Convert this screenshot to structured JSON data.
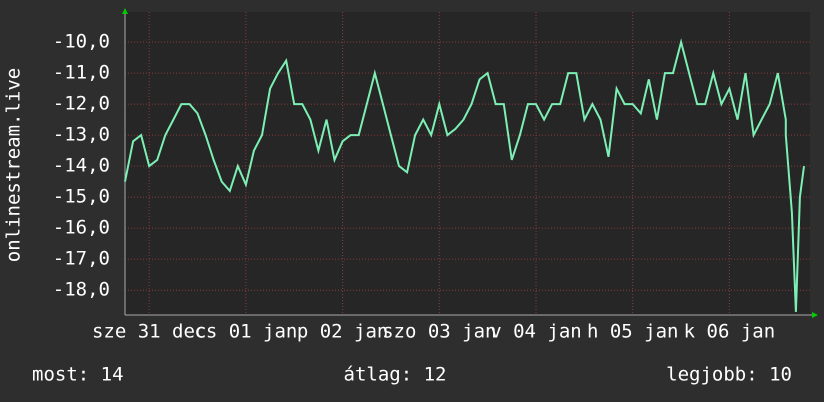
{
  "chart_data": {
    "type": "line",
    "y_label": "onlinestream.live",
    "x": [
      0,
      2,
      4,
      6,
      8,
      10,
      12,
      14,
      16,
      18,
      20,
      22,
      24,
      26,
      28,
      30,
      32,
      34,
      36,
      38,
      40,
      42,
      44,
      46,
      48,
      50,
      52,
      54,
      56,
      58,
      60,
      62,
      64,
      66,
      68,
      70,
      72,
      74,
      76,
      78,
      80,
      82,
      84,
      86,
      88,
      90,
      92,
      94,
      96,
      98,
      100,
      102,
      104,
      106,
      108,
      110,
      112,
      114,
      116,
      118,
      120,
      122,
      124,
      126,
      128,
      130,
      132,
      134,
      136,
      138,
      140,
      142,
      144,
      146,
      148,
      150,
      152,
      154,
      156,
      158,
      160,
      162,
      164,
      164,
      165.5,
      166.5,
      167.5,
      168.5
    ],
    "series": [
      {
        "name": "onlinestream.live",
        "color": "#7cf0b4",
        "values": [
          -14.5,
          -13.2,
          -13.0,
          -14.0,
          -13.8,
          -13.0,
          -12.5,
          -12.0,
          -12.0,
          -12.3,
          -13.0,
          -13.8,
          -14.5,
          -14.8,
          -14.0,
          -14.6,
          -13.5,
          -13.0,
          -11.5,
          -11.0,
          -10.6,
          -12.0,
          -12.0,
          -12.5,
          -13.5,
          -12.5,
          -13.8,
          -13.2,
          -13.0,
          -13.0,
          -12.0,
          -11.0,
          -12.0,
          -13.0,
          -14.0,
          -14.2,
          -13.0,
          -12.5,
          -13.0,
          -12.0,
          -13.0,
          -12.8,
          -12.5,
          -12.0,
          -11.2,
          -11.0,
          -12.0,
          -12.0,
          -13.8,
          -13.0,
          -12.0,
          -12.0,
          -12.5,
          -12.0,
          -12.0,
          -11.0,
          -11.0,
          -12.5,
          -12.0,
          -12.5,
          -13.7,
          -11.5,
          -12.0,
          -12.0,
          -12.3,
          -11.2,
          -12.5,
          -11.0,
          -11.0,
          -10.0,
          -11.0,
          -12.0,
          -12.0,
          -11.0,
          -12.0,
          -11.5,
          -12.5,
          -11.0,
          -13.0,
          -12.5,
          -12.0,
          -11.0,
          -12.5,
          -13.0,
          -15.5,
          -18.7,
          -15.0,
          -14.0
        ]
      }
    ],
    "xlim": [
      0,
      170
    ],
    "xticks": [
      {
        "value": 6,
        "label": "sze 31 dec"
      },
      {
        "value": 30,
        "label": "cs 01 jan"
      },
      {
        "value": 54,
        "label": "p 02 jan"
      },
      {
        "value": 78,
        "label": "szo 03 jan"
      },
      {
        "value": 102,
        "label": "v 04 jan"
      },
      {
        "value": 126,
        "label": "h 05 jan"
      },
      {
        "value": 150,
        "label": "k 06 jan"
      }
    ],
    "ylim": [
      -18.8,
      -9.03
    ],
    "yticks": [
      {
        "value": -10,
        "label": "-10,0"
      },
      {
        "value": -11,
        "label": "-11,0"
      },
      {
        "value": -12,
        "label": "-12,0"
      },
      {
        "value": -13,
        "label": "-13,0"
      },
      {
        "value": -14,
        "label": "-14,0"
      },
      {
        "value": -15,
        "label": "-15,0"
      },
      {
        "value": -16,
        "label": "-16,0"
      },
      {
        "value": -17,
        "label": "-17,0"
      },
      {
        "value": -18,
        "label": "-18,0"
      }
    ],
    "grid": true,
    "footer": {
      "current": "most: 14",
      "average": "átlag: 12",
      "best": "legjobb: 10"
    }
  }
}
